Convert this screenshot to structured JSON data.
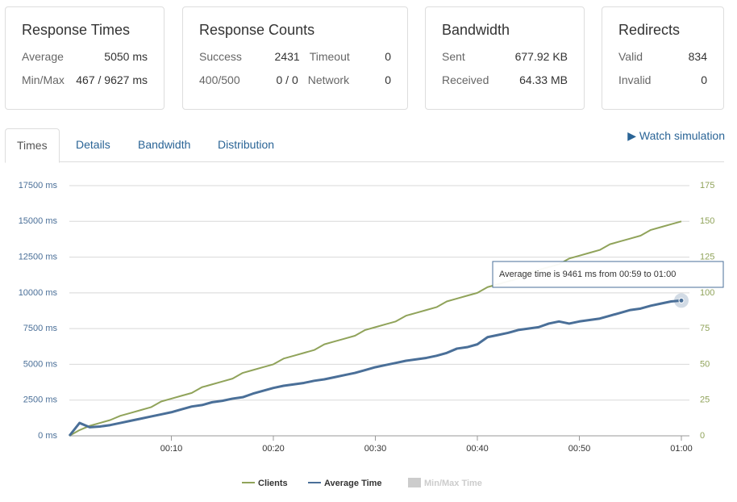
{
  "cards": [
    {
      "title": "Response Times",
      "rows": [
        [
          "Average",
          "5050 ms"
        ],
        [
          "Min/Max",
          "467 / 9627 ms"
        ]
      ]
    },
    {
      "title": "Response Counts",
      "rows": [
        [
          "Success",
          "2431",
          "Timeout",
          "0"
        ],
        [
          "400/500",
          "0 / 0",
          "Network",
          "0"
        ]
      ]
    },
    {
      "title": "Bandwidth",
      "rows": [
        [
          "Sent",
          "677.92 KB"
        ],
        [
          "Received",
          "64.33 MB"
        ]
      ]
    },
    {
      "title": "Redirects",
      "rows": [
        [
          "Valid",
          "834"
        ],
        [
          "Invalid",
          "0"
        ]
      ]
    }
  ],
  "tabs": [
    "Times",
    "Details",
    "Bandwidth",
    "Distribution"
  ],
  "watch": "Watch simulation",
  "chart_data": {
    "type": "line",
    "annotation": "Average time is 9461 ms from 00:59 to 01:00",
    "x": [
      0,
      1,
      2,
      3,
      4,
      5,
      6,
      7,
      8,
      9,
      10,
      11,
      12,
      13,
      14,
      15,
      16,
      17,
      18,
      19,
      20,
      21,
      22,
      23,
      24,
      25,
      26,
      27,
      28,
      29,
      30,
      31,
      32,
      33,
      34,
      35,
      36,
      37,
      38,
      39,
      40,
      41,
      42,
      43,
      44,
      45,
      46,
      47,
      48,
      49,
      50,
      51,
      52,
      53,
      54,
      55,
      56,
      57,
      58,
      59,
      60
    ],
    "xlim": [
      0,
      60
    ],
    "xticks": [
      {
        "value": 10,
        "label": "00:10"
      },
      {
        "value": 20,
        "label": "00:20"
      },
      {
        "value": 30,
        "label": "00:30"
      },
      {
        "value": 40,
        "label": "00:40"
      },
      {
        "value": 50,
        "label": "00:50"
      },
      {
        "value": 60,
        "label": "01:00"
      }
    ],
    "ylim": [
      0,
      17500
    ],
    "yticks": [
      {
        "value": 0,
        "label": "0 ms"
      },
      {
        "value": 2500,
        "label": "2500 ms"
      },
      {
        "value": 5000,
        "label": "5000 ms"
      },
      {
        "value": 7500,
        "label": "7500 ms"
      },
      {
        "value": 10000,
        "label": "10000 ms"
      },
      {
        "value": 12500,
        "label": "12500 ms"
      },
      {
        "value": 15000,
        "label": "15000 ms"
      },
      {
        "value": 17500,
        "label": "17500 ms"
      }
    ],
    "y2lim": [
      0,
      175
    ],
    "y2ticks": [
      0,
      25,
      50,
      75,
      100,
      125,
      150,
      175
    ],
    "grid": true,
    "series": [
      {
        "name": "Clients",
        "color": "#90a35a",
        "axis": "y2",
        "values": [
          0,
          4,
          7,
          9,
          11,
          14,
          16,
          18,
          20,
          24,
          26,
          28,
          30,
          34,
          36,
          38,
          40,
          44,
          46,
          48,
          50,
          54,
          56,
          58,
          60,
          64,
          66,
          68,
          70,
          74,
          76,
          78,
          80,
          84,
          86,
          88,
          90,
          94,
          96,
          98,
          100,
          104,
          106,
          108,
          110,
          114,
          116,
          118,
          120,
          124,
          126,
          128,
          130,
          134,
          136,
          138,
          140,
          144,
          146,
          148,
          150
        ]
      },
      {
        "name": "Average Time",
        "color": "#4a6f98",
        "values": [
          0,
          900,
          600,
          650,
          750,
          900,
          1050,
          1200,
          1350,
          1500,
          1650,
          1850,
          2050,
          2150,
          2350,
          2450,
          2600,
          2700,
          2950,
          3150,
          3350,
          3500,
          3600,
          3700,
          3850,
          3950,
          4100,
          4250,
          4400,
          4600,
          4800,
          4950,
          5100,
          5250,
          5350,
          5450,
          5600,
          5800,
          6100,
          6200,
          6400,
          6900,
          7050,
          7200,
          7400,
          7500,
          7600,
          7850,
          8000,
          7850,
          8000,
          8100,
          8200,
          8400,
          8600,
          8800,
          8900,
          9100,
          9250,
          9400,
          9461
        ]
      }
    ],
    "hidden_series": [
      {
        "name": "Min/Max Time",
        "color": "#cccccc"
      }
    ]
  }
}
